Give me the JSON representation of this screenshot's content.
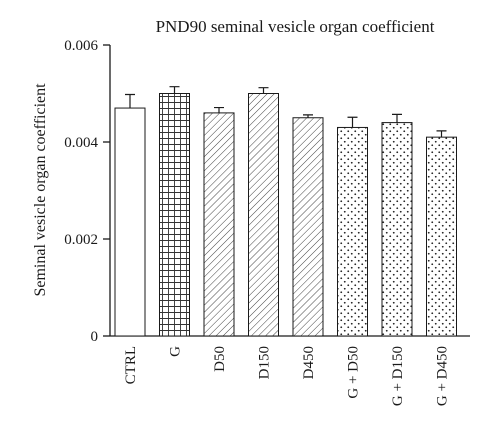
{
  "chart_data": {
    "type": "bar",
    "title": "PND90 seminal vesicle organ coefficient",
    "ylabel": "Seminal vesicle organ coefficient",
    "xlabel": "",
    "ylim": [
      0,
      0.006
    ],
    "yticks": [
      "0",
      "0.002",
      "0.004",
      "0.006"
    ],
    "ytick_values": [
      0,
      0.002,
      0.004,
      0.006
    ],
    "categories": [
      "CTRL",
      "G",
      "D50",
      "D150",
      "D450",
      "G + D50",
      "G + D150",
      "G + D450"
    ],
    "values": [
      0.0047,
      0.005,
      0.0046,
      0.005,
      0.0045,
      0.0043,
      0.0044,
      0.0041
    ],
    "errors": [
      0.00028,
      0.00014,
      0.00011,
      0.00012,
      6e-05,
      0.00021,
      0.00017,
      0.00013
    ],
    "patterns": [
      "none",
      "grid",
      "diagonal",
      "diagonal",
      "diagonal",
      "dots",
      "dots",
      "dots"
    ],
    "grid": false,
    "colors": {
      "bar_fill": "#ffffff",
      "stroke": "#1a1a1a"
    }
  }
}
